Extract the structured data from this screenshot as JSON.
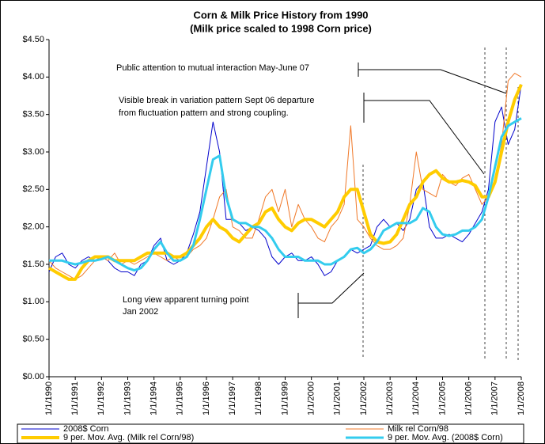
{
  "chart_data": {
    "type": "line",
    "title": "Corn & Milk Price History from 1990",
    "subtitle": "(Milk price scaled to 1998 Corn price)",
    "annotations": [
      "Public attention to mutual interaction May-June 07",
      "Visible break in variation pattern Sept 06 departure",
      "from fluctuation pattern and strong coupling.",
      "Long view apparent turning point",
      "Jan 2002"
    ],
    "x": [
      1990,
      1990.25,
      1990.5,
      1990.75,
      1991,
      1991.25,
      1991.5,
      1991.75,
      1992,
      1992.25,
      1992.5,
      1992.75,
      1993,
      1993.25,
      1993.5,
      1993.75,
      1994,
      1994.25,
      1994.5,
      1994.75,
      1995,
      1995.25,
      1995.5,
      1995.75,
      1996,
      1996.25,
      1996.5,
      1996.75,
      1997,
      1997.25,
      1997.5,
      1997.75,
      1998,
      1998.25,
      1998.5,
      1998.75,
      1999,
      1999.25,
      1999.5,
      1999.75,
      2000,
      2000.25,
      2000.5,
      2000.75,
      2001,
      2001.25,
      2001.5,
      2001.75,
      2002,
      2002.25,
      2002.5,
      2002.75,
      2003,
      2003.25,
      2003.5,
      2003.75,
      2004,
      2004.25,
      2004.5,
      2004.75,
      2005,
      2005.25,
      2005.5,
      2005.75,
      2006,
      2006.25,
      2006.5,
      2006.75,
      2007,
      2007.25,
      2007.5,
      2007.75,
      2008
    ],
    "series": [
      {
        "name": "2008$ Corn",
        "color": "#0000cc",
        "width": 1,
        "values": [
          1.4,
          1.6,
          1.65,
          1.5,
          1.45,
          1.55,
          1.6,
          1.55,
          1.6,
          1.55,
          1.45,
          1.4,
          1.4,
          1.35,
          1.5,
          1.55,
          1.75,
          1.85,
          1.55,
          1.5,
          1.55,
          1.65,
          1.9,
          2.2,
          2.8,
          3.4,
          3.0,
          2.1,
          2.1,
          2.05,
          1.95,
          2.0,
          1.95,
          1.85,
          1.6,
          1.5,
          1.6,
          1.65,
          1.55,
          1.55,
          1.6,
          1.5,
          1.35,
          1.4,
          1.55,
          1.6,
          1.7,
          1.65,
          1.7,
          1.75,
          2.0,
          2.1,
          2.0,
          2.05,
          1.95,
          2.1,
          2.5,
          2.6,
          2.0,
          1.85,
          1.85,
          1.9,
          1.85,
          1.8,
          1.9,
          2.05,
          2.2,
          2.5,
          3.4,
          3.6,
          3.1,
          3.3,
          3.9
        ]
      },
      {
        "name": "Milk rel Corn/98",
        "color": "#f07828",
        "width": 1,
        "values": [
          1.55,
          1.45,
          1.4,
          1.35,
          1.3,
          1.35,
          1.45,
          1.55,
          1.6,
          1.55,
          1.65,
          1.5,
          1.55,
          1.5,
          1.55,
          1.6,
          1.65,
          1.6,
          1.55,
          1.6,
          1.55,
          1.6,
          1.7,
          1.75,
          1.85,
          2.1,
          2.4,
          2.5,
          2.0,
          1.95,
          1.85,
          1.85,
          2.1,
          2.4,
          2.5,
          2.2,
          2.5,
          2.0,
          2.3,
          2.1,
          2.0,
          1.85,
          1.8,
          2.0,
          2.1,
          2.3,
          3.35,
          2.1,
          2.0,
          1.85,
          1.75,
          1.7,
          1.7,
          1.75,
          1.85,
          2.3,
          3.0,
          2.5,
          2.45,
          2.4,
          2.7,
          2.6,
          2.55,
          2.65,
          2.7,
          2.5,
          2.3,
          2.4,
          2.6,
          3.1,
          3.95,
          4.05,
          4.0
        ]
      },
      {
        "name": "9 per. Mov. Avg. (Milk rel Corn/98)",
        "color": "#ffcc00",
        "width": 4,
        "values": [
          1.45,
          1.4,
          1.35,
          1.3,
          1.3,
          1.45,
          1.55,
          1.6,
          1.6,
          1.6,
          1.55,
          1.55,
          1.55,
          1.55,
          1.6,
          1.65,
          1.65,
          1.65,
          1.65,
          1.6,
          1.6,
          1.65,
          1.75,
          1.85,
          2.0,
          2.1,
          2.0,
          1.95,
          1.85,
          1.8,
          1.9,
          2.0,
          2.05,
          2.2,
          2.25,
          2.1,
          2.0,
          1.95,
          2.05,
          2.1,
          2.1,
          2.05,
          2.0,
          2.1,
          2.2,
          2.4,
          2.5,
          2.5,
          2.2,
          1.9,
          1.8,
          1.78,
          1.8,
          1.9,
          2.1,
          2.3,
          2.4,
          2.6,
          2.7,
          2.75,
          2.65,
          2.6,
          2.6,
          2.62,
          2.6,
          2.55,
          2.4,
          2.4,
          2.6,
          3.0,
          3.4,
          3.7,
          3.9
        ]
      },
      {
        "name": "9 per. Mov. Avg. (2008$ Corn)",
        "color": "#33ccee",
        "width": 3,
        "values": [
          1.55,
          1.55,
          1.55,
          1.52,
          1.5,
          1.52,
          1.55,
          1.55,
          1.57,
          1.6,
          1.55,
          1.5,
          1.45,
          1.42,
          1.45,
          1.55,
          1.7,
          1.8,
          1.65,
          1.55,
          1.55,
          1.6,
          1.75,
          2.1,
          2.5,
          2.9,
          2.95,
          2.4,
          2.1,
          2.05,
          2.05,
          2.0,
          2.0,
          1.95,
          1.85,
          1.7,
          1.6,
          1.6,
          1.6,
          1.55,
          1.55,
          1.55,
          1.5,
          1.5,
          1.55,
          1.6,
          1.7,
          1.72,
          1.65,
          1.7,
          1.8,
          1.95,
          2.0,
          2.05,
          2.05,
          2.05,
          2.1,
          2.25,
          2.2,
          2.0,
          1.9,
          1.88,
          1.9,
          1.95,
          1.95,
          2.0,
          2.1,
          2.4,
          2.8,
          3.2,
          3.35,
          3.4,
          3.45
        ]
      }
    ],
    "xlim": [
      1990,
      2008
    ],
    "xticks": [
      {
        "value": 1990,
        "label": "1/1/1990"
      },
      {
        "value": 1991,
        "label": "1/1/1991"
      },
      {
        "value": 1992,
        "label": "1/1/1992"
      },
      {
        "value": 1993,
        "label": "1/1/1993"
      },
      {
        "value": 1994,
        "label": "1/1/1994"
      },
      {
        "value": 1995,
        "label": "1/1/1995"
      },
      {
        "value": 1996,
        "label": "1/1/1996"
      },
      {
        "value": 1997,
        "label": "1/1/1997"
      },
      {
        "value": 1998,
        "label": "1/1/1998"
      },
      {
        "value": 1999,
        "label": "1/1/1999"
      },
      {
        "value": 2000,
        "label": "1/1/2000"
      },
      {
        "value": 2001,
        "label": "1/1/2001"
      },
      {
        "value": 2002,
        "label": "1/1/2002"
      },
      {
        "value": 2003,
        "label": "1/1/2003"
      },
      {
        "value": 2004,
        "label": "1/1/2004"
      },
      {
        "value": 2005,
        "label": "1/1/2005"
      },
      {
        "value": 2006,
        "label": "1/1/2006"
      },
      {
        "value": 2007,
        "label": "1/1/2007"
      },
      {
        "value": 2008,
        "label": "1/1/2008"
      }
    ],
    "ylim": [
      0,
      4.5
    ],
    "yticks": [
      {
        "value": 0,
        "label": "$0.00"
      },
      {
        "value": 0.5,
        "label": "$0.50"
      },
      {
        "value": 1,
        "label": "$1.00"
      },
      {
        "value": 1.5,
        "label": "$1.50"
      },
      {
        "value": 2,
        "label": "$2.00"
      },
      {
        "value": 2.5,
        "label": "$2.50"
      },
      {
        "value": 3,
        "label": "$3.00"
      },
      {
        "value": 3.5,
        "label": "$3.50"
      },
      {
        "value": 4,
        "label": "$4.00"
      },
      {
        "value": 4.5,
        "label": "$4.50"
      }
    ],
    "grid": false
  }
}
